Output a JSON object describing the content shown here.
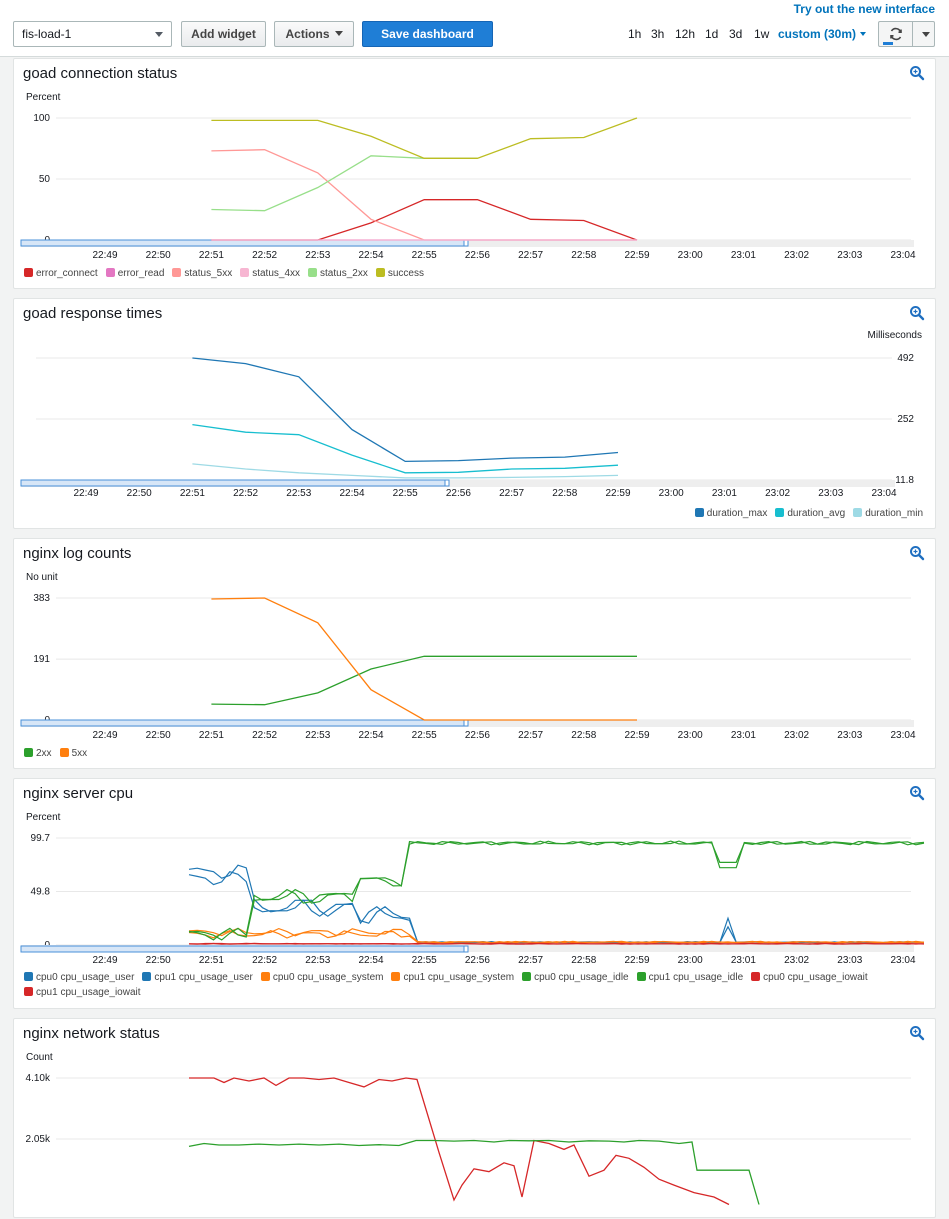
{
  "header": {
    "try_link": "Try out the new interface",
    "dashboard_select": "fis-load-1",
    "add_widget_label": "Add widget",
    "actions_label": "Actions",
    "save_label": "Save dashboard",
    "time_ranges": [
      "1h",
      "3h",
      "12h",
      "1d",
      "3d",
      "1w"
    ],
    "custom_range_label": "custom (30m)",
    "refresh_icon": "refresh-icon",
    "zoom_icon": "magnifier-zoom-icon"
  },
  "colors": {
    "accent": "#0073bb",
    "primary_button": "#1f7ed6",
    "time_selection_bar": "#4a90d9"
  },
  "x_ticks": [
    "22:49",
    "22:50",
    "22:51",
    "22:52",
    "22:53",
    "22:54",
    "22:55",
    "22:56",
    "22:57",
    "22:58",
    "22:59",
    "23:00",
    "23:01",
    "23:02",
    "23:03",
    "23:04"
  ],
  "chart_data": [
    {
      "type": "line",
      "title": "goad connection status",
      "ylabel": "Percent",
      "y_ticks": [
        "100",
        "50",
        "0"
      ],
      "ylim": [
        0,
        100
      ],
      "x": [
        "22:51",
        "22:52",
        "22:53",
        "22:54",
        "22:55",
        "22:56",
        "22:57",
        "22:58",
        "22:59"
      ],
      "series": [
        {
          "name": "error_connect",
          "color": "#d62728",
          "values": [
            0,
            0,
            0,
            14,
            33,
            33,
            17,
            16,
            0
          ]
        },
        {
          "name": "error_read",
          "color": "#e377c2",
          "values": [
            0,
            0,
            0,
            0,
            0,
            0,
            0,
            0,
            0
          ]
        },
        {
          "name": "status_5xx",
          "color": "#ff9896",
          "values": [
            73,
            74,
            55,
            17,
            0,
            0,
            0,
            0,
            0
          ]
        },
        {
          "name": "status_4xx",
          "color": "#f7b6d2",
          "values": [
            0,
            0,
            0,
            0,
            0,
            0,
            0,
            0,
            0
          ]
        },
        {
          "name": "status_2xx",
          "color": "#98df8a",
          "values": [
            25,
            24,
            43,
            69,
            67,
            67,
            null,
            null,
            null
          ]
        },
        {
          "name": "success",
          "color": "#bcbd22",
          "values": [
            98,
            98,
            98,
            85,
            67,
            67,
            83,
            84,
            100
          ]
        }
      ],
      "legend": "bottom-left"
    },
    {
      "type": "line",
      "title": "goad response times",
      "ylabel": "Milliseconds",
      "y_ticks": [
        "492",
        "252",
        "11.8"
      ],
      "ylim": [
        11.8,
        492
      ],
      "x": [
        "22:51",
        "22:52",
        "22:53",
        "22:54",
        "22:55",
        "22:56",
        "22:57",
        "22:58",
        "22:59"
      ],
      "series": [
        {
          "name": "duration_max",
          "color": "#1f77b4",
          "values": [
            492,
            470,
            418,
            210,
            85,
            88,
            98,
            102,
            120
          ]
        },
        {
          "name": "duration_avg",
          "color": "#17becf",
          "values": [
            230,
            200,
            190,
            110,
            40,
            42,
            55,
            58,
            70
          ]
        },
        {
          "name": "duration_min",
          "color": "#9edae5",
          "values": [
            75,
            55,
            40,
            30,
            20,
            20,
            22,
            25,
            30
          ]
        }
      ],
      "legend": "bottom-right"
    },
    {
      "type": "line",
      "title": "nginx log counts",
      "ylabel": "No unit",
      "y_ticks": [
        "383",
        "191",
        "0"
      ],
      "ylim": [
        0,
        383
      ],
      "x": [
        "22:51",
        "22:52",
        "22:53",
        "22:54",
        "22:55",
        "22:56",
        "22:57",
        "22:58",
        "22:59"
      ],
      "series": [
        {
          "name": "2xx",
          "color": "#2ca02c",
          "values": [
            50,
            48,
            85,
            160,
            200,
            200,
            200,
            200,
            200
          ]
        },
        {
          "name": "5xx",
          "color": "#ff7f0e",
          "values": [
            380,
            383,
            305,
            95,
            0,
            0,
            0,
            0,
            0
          ]
        }
      ],
      "legend": "bottom-left"
    },
    {
      "type": "line",
      "title": "nginx server cpu",
      "ylabel": "Percent",
      "y_ticks": [
        "99.7",
        "49.8",
        "0"
      ],
      "ylim": [
        0,
        99.7
      ],
      "series": [
        {
          "name": "cpu0 cpu_usage_user",
          "color": "#1f77b4"
        },
        {
          "name": "cpu1 cpu_usage_user",
          "color": "#1f77b4"
        },
        {
          "name": "cpu0 cpu_usage_system",
          "color": "#ff7f0e"
        },
        {
          "name": "cpu1 cpu_usage_system",
          "color": "#ff7f0e"
        },
        {
          "name": "cpu0 cpu_usage_idle",
          "color": "#2ca02c"
        },
        {
          "name": "cpu1 cpu_usage_idle",
          "color": "#2ca02c"
        },
        {
          "name": "cpu0 cpu_usage_iowait",
          "color": "#d62728"
        },
        {
          "name": "cpu1 cpu_usage_iowait",
          "color": "#d62728"
        }
      ],
      "legend": "bottom-left"
    },
    {
      "type": "line",
      "title": "nginx network status",
      "ylabel": "Count",
      "y_ticks": [
        "4.10k",
        "2.05k"
      ],
      "ylim": [
        0,
        4100
      ],
      "series": [
        {
          "color": "#d62728"
        },
        {
          "color": "#2ca02c"
        }
      ]
    }
  ]
}
